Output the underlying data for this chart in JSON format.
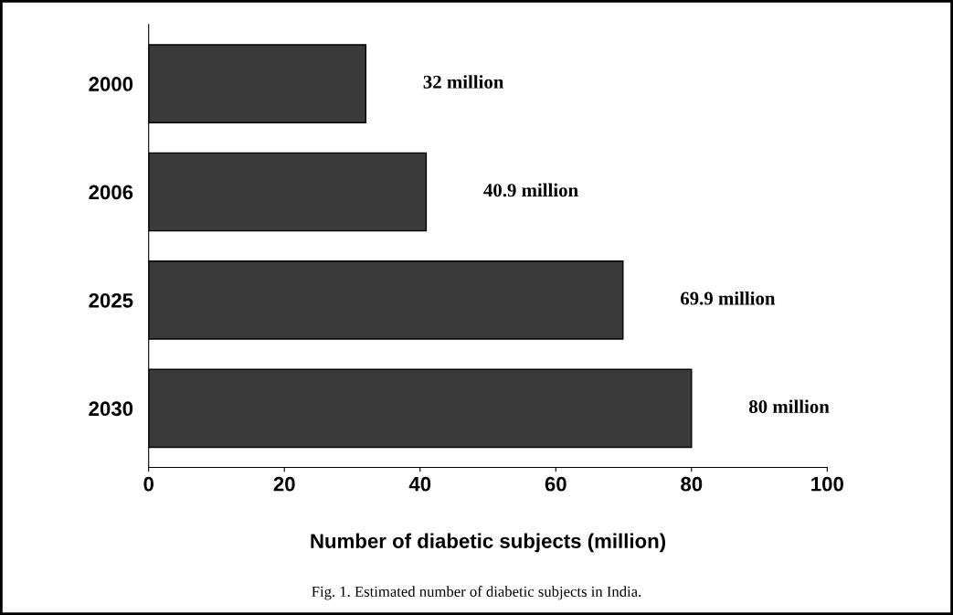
{
  "chart_data": {
    "type": "bar",
    "orientation": "horizontal",
    "categories": [
      "2000",
      "2006",
      "2025",
      "2030"
    ],
    "values": [
      32,
      40.9,
      69.9,
      80
    ],
    "value_labels": [
      "32 million",
      "40.9 million",
      "69.9 million",
      "80 million"
    ],
    "color": "#3a3a3a",
    "xlabel": "Number of diabetic subjects (million)",
    "xlim": [
      0,
      100
    ],
    "xticks": [
      0,
      20,
      40,
      60,
      80,
      100
    ],
    "grid": false,
    "legend": false,
    "annotations": [
      "Fig. 1. Estimated number of diabetic subjects in India."
    ]
  }
}
